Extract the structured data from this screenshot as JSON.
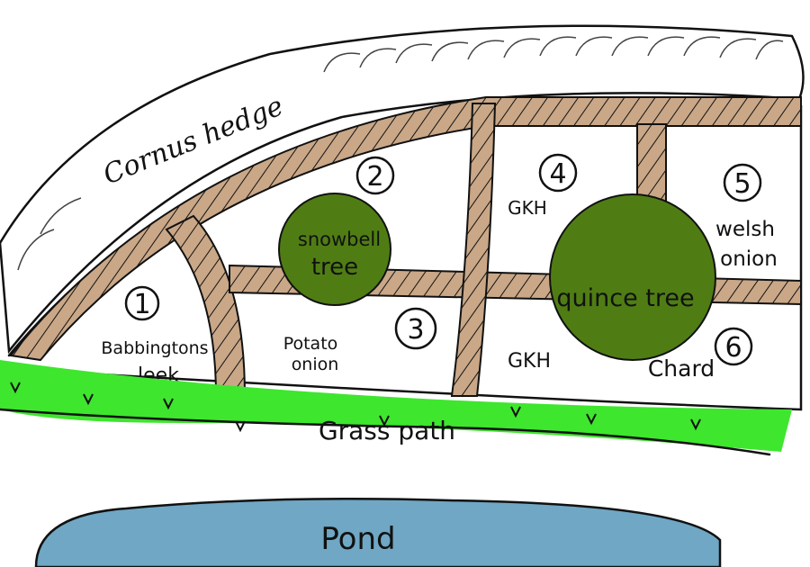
{
  "colors": {
    "hedge": "#ffffff",
    "path_wood": "#c9a787",
    "grass": "#3ee62e",
    "tree": "#4f7d14",
    "pond": "#6fa7c4",
    "ink": "#111111"
  },
  "labels": {
    "hedge": "Cornus hedge",
    "grass": "Grass path",
    "pond": "Pond"
  },
  "trees": [
    {
      "icon": "tree-icon",
      "line1": "snowbell",
      "line2": "tree"
    },
    {
      "icon": "tree-icon",
      "line1": "quince tree",
      "line2": ""
    }
  ],
  "beds": [
    {
      "number": "1",
      "line1": "Babbingtons",
      "line2": "leek"
    },
    {
      "number": "2",
      "line1": "",
      "line2": ""
    },
    {
      "number": "3",
      "line1": "Potato",
      "line2": "onion"
    },
    {
      "number": "4",
      "line1": "GKH",
      "line2": ""
    },
    {
      "number": "5",
      "line1": "welsh",
      "line2": "onion"
    },
    {
      "number": "6",
      "line1": "Chard",
      "line2": ""
    }
  ],
  "extra": {
    "gkh_lower": "GKH"
  }
}
